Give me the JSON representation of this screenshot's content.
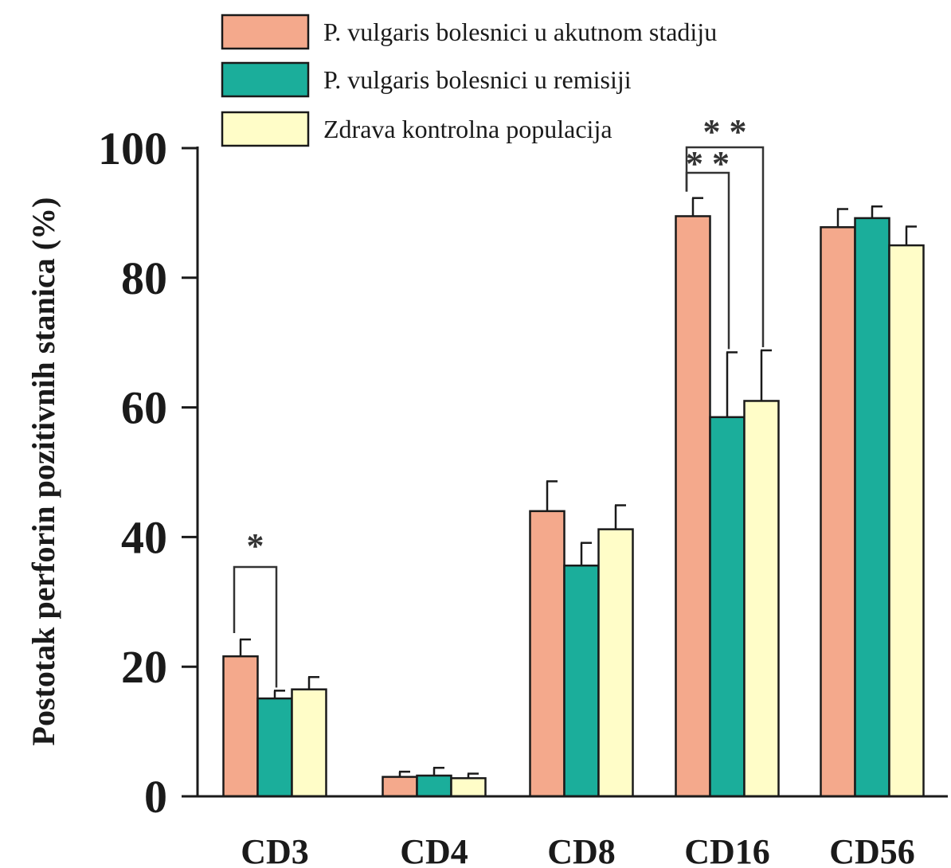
{
  "chart_data": {
    "type": "bar",
    "title": "",
    "xlabel": "",
    "ylabel": "Postotak perforin pozitivnih stanica (%)",
    "ylim": [
      0,
      100
    ],
    "yticks": [
      "0",
      "20",
      "40",
      "60",
      "80",
      "100"
    ],
    "categories": [
      "CD3",
      "CD4",
      "CD8",
      "CD16",
      "CD56"
    ],
    "legend_position": "top",
    "series": [
      {
        "name": "P. vulgaris bolesnici u akutnom stadiju",
        "color": "#F4A98C",
        "values": [
          21.6,
          3.0,
          44.0,
          89.5,
          87.8
        ],
        "errors": [
          2.6,
          0.8,
          4.6,
          2.8,
          2.8
        ]
      },
      {
        "name": "P. vulgaris bolesnici u remisiji",
        "color": "#1BAE9B",
        "values": [
          15.1,
          3.2,
          35.6,
          58.5,
          89.2
        ],
        "errors": [
          1.2,
          1.2,
          3.5,
          10.0,
          1.8
        ]
      },
      {
        "name": "Zdrava kontrolna populacija",
        "color": "#FFFDC8",
        "values": [
          16.5,
          2.8,
          41.2,
          61.0,
          85.0
        ],
        "errors": [
          1.9,
          0.7,
          3.7,
          7.8,
          2.9
        ]
      }
    ],
    "significance": [
      {
        "category": "CD3",
        "series": [
          0,
          1
        ],
        "label": "*"
      },
      {
        "category": "CD16",
        "series": [
          0,
          1
        ],
        "label": "**"
      },
      {
        "category": "CD16",
        "series": [
          0,
          2
        ],
        "label": "**"
      }
    ]
  }
}
